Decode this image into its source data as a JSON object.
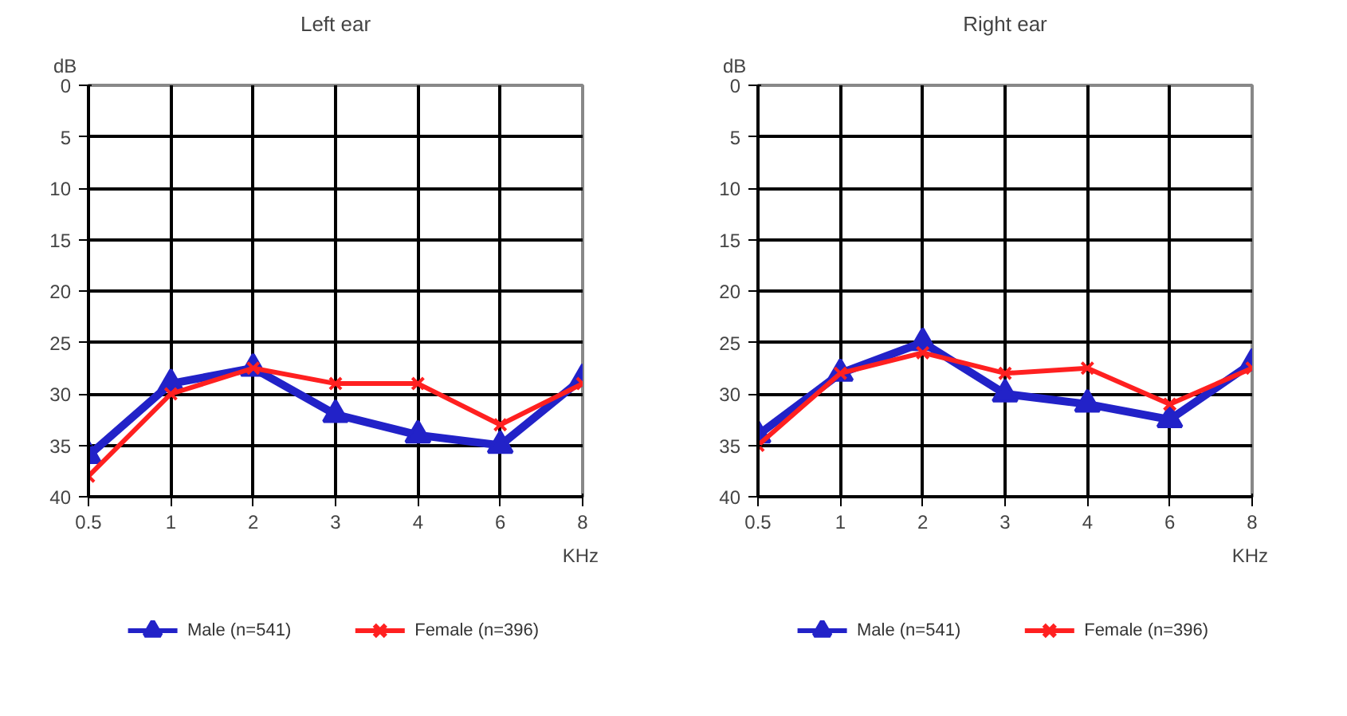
{
  "chart_data": [
    {
      "type": "line",
      "title": "Left ear",
      "ylabel": "dB",
      "xlabel": "KHz",
      "categories": [
        "0.5",
        "1",
        "2",
        "3",
        "4",
        "6",
        "8"
      ],
      "ylim": [
        40,
        0
      ],
      "yticks": [
        0,
        5,
        10,
        15,
        20,
        25,
        30,
        35,
        40
      ],
      "grid": true,
      "legend": "bottom",
      "series": [
        {
          "name": "Male (n=541)",
          "color": "#2222c8",
          "marker": "triangle",
          "values": [
            36,
            29,
            27.5,
            32,
            34,
            35,
            28.5
          ]
        },
        {
          "name": "Female (n=396)",
          "color": "#ff2020",
          "marker": "cross",
          "values": [
            38,
            30,
            27.5,
            29,
            29,
            33,
            29
          ]
        }
      ]
    },
    {
      "type": "line",
      "title": "Right ear",
      "ylabel": "dB",
      "xlabel": "KHz",
      "categories": [
        "0.5",
        "1",
        "2",
        "3",
        "4",
        "6",
        "8"
      ],
      "ylim": [
        40,
        0
      ],
      "yticks": [
        0,
        5,
        10,
        15,
        20,
        25,
        30,
        35,
        40
      ],
      "grid": true,
      "legend": "bottom",
      "series": [
        {
          "name": "Male (n=541)",
          "color": "#2222c8",
          "marker": "triangle",
          "values": [
            34,
            28,
            25,
            30,
            31,
            32.5,
            27
          ]
        },
        {
          "name": "Female (n=396)",
          "color": "#ff2020",
          "marker": "cross",
          "values": [
            35,
            28,
            26,
            28,
            27.5,
            31,
            27.5
          ]
        }
      ]
    }
  ]
}
